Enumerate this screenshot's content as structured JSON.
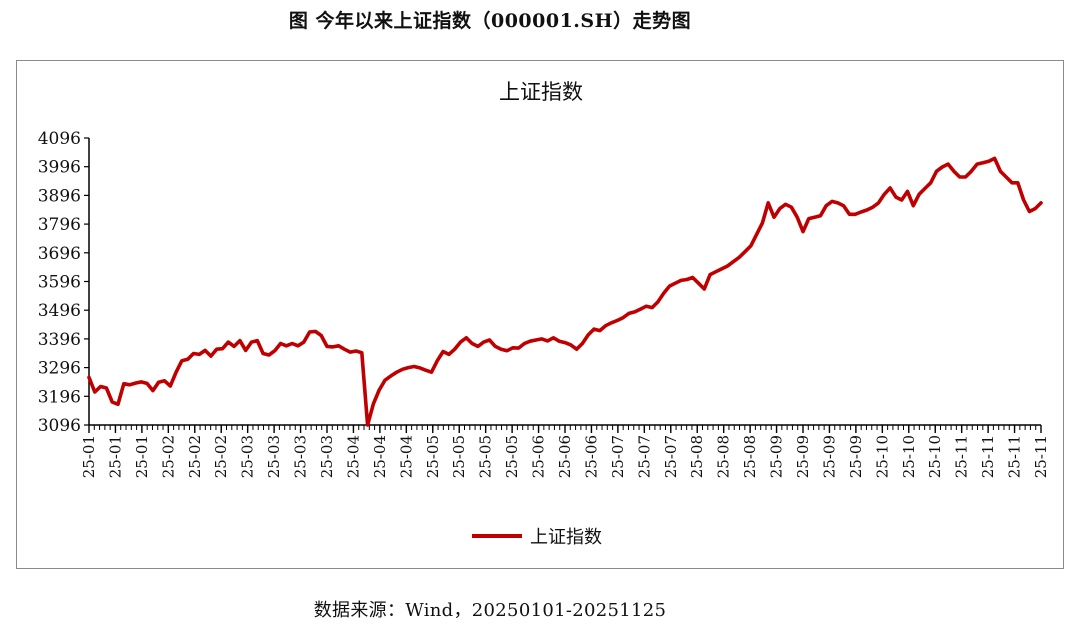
{
  "figure_title": "图 今年以来上证指数（000001.SH）走势图",
  "source_note": "数据来源：Wind，20250101-20251125",
  "colors": {
    "line": "#c00000",
    "axis": "#000000",
    "frame": "#8a8a8a"
  },
  "chart_data": {
    "type": "line",
    "title": "上证指数",
    "xlabel": "",
    "ylabel": "",
    "ylim": [
      3096,
      4096
    ],
    "yticks": [
      3096,
      3196,
      3296,
      3396,
      3496,
      3596,
      3696,
      3796,
      3896,
      3996,
      4096
    ],
    "xtick_labels": [
      "25-01",
      "25-01",
      "25-01",
      "25-02",
      "25-02",
      "25-02",
      "25-03",
      "25-03",
      "25-03",
      "25-03",
      "25-04",
      "25-04",
      "25-04",
      "25-05",
      "25-05",
      "25-05",
      "25-05",
      "25-06",
      "25-06",
      "25-06",
      "25-07",
      "25-07",
      "25-07",
      "25-08",
      "25-08",
      "25-08",
      "25-09",
      "25-09",
      "25-09",
      "25-09",
      "25-10",
      "25-10",
      "25-10",
      "25-11",
      "25-11",
      "25-11",
      "25-11"
    ],
    "grid": false,
    "legend": "bottom",
    "series": [
      {
        "name": "上证指数",
        "values": [
          3262,
          3211,
          3230,
          3225,
          3176,
          3168,
          3240,
          3236,
          3242,
          3246,
          3241,
          3216,
          3245,
          3250,
          3232,
          3280,
          3320,
          3325,
          3345,
          3342,
          3356,
          3336,
          3360,
          3362,
          3385,
          3370,
          3390,
          3356,
          3385,
          3390,
          3345,
          3340,
          3355,
          3380,
          3372,
          3380,
          3372,
          3385,
          3420,
          3422,
          3408,
          3370,
          3368,
          3372,
          3360,
          3350,
          3354,
          3348,
          3096,
          3170,
          3218,
          3252,
          3267,
          3280,
          3290,
          3296,
          3300,
          3295,
          3287,
          3280,
          3320,
          3352,
          3342,
          3360,
          3385,
          3400,
          3380,
          3370,
          3385,
          3392,
          3370,
          3360,
          3355,
          3365,
          3364,
          3380,
          3388,
          3392,
          3396,
          3389,
          3400,
          3388,
          3383,
          3375,
          3360,
          3380,
          3410,
          3430,
          3425,
          3442,
          3452,
          3460,
          3470,
          3485,
          3490,
          3500,
          3510,
          3505,
          3525,
          3555,
          3580,
          3590,
          3600,
          3603,
          3610,
          3590,
          3570,
          3620,
          3630,
          3640,
          3650,
          3665,
          3680,
          3700,
          3720,
          3760,
          3800,
          3870,
          3820,
          3850,
          3865,
          3855,
          3820,
          3770,
          3815,
          3820,
          3825,
          3860,
          3875,
          3870,
          3860,
          3830,
          3830,
          3838,
          3845,
          3855,
          3870,
          3900,
          3922,
          3890,
          3880,
          3910,
          3860,
          3900,
          3920,
          3940,
          3980,
          3995,
          4005,
          3980,
          3960,
          3960,
          3980,
          4005,
          4010,
          4015,
          4025,
          3980,
          3960,
          3940,
          3940,
          3880,
          3840,
          3850,
          3870
        ]
      }
    ]
  }
}
